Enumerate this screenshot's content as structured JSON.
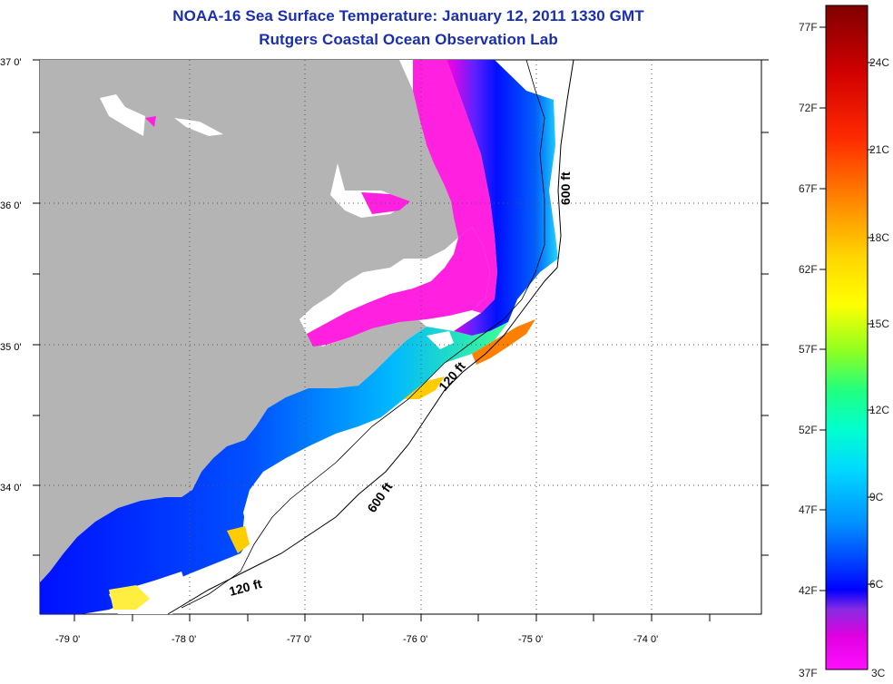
{
  "header": {
    "title": "NOAA-16 Sea Surface Temperature:  January 12, 2011 1330 GMT",
    "subtitle": "Rutgers Coastal Ocean Observation Lab"
  },
  "map": {
    "lat_labels": [
      "37 0'",
      "36 0'",
      "35 0'",
      "34 0'"
    ],
    "lon_labels": [
      "-79 0'",
      "-78 0'",
      "-77 0'",
      "-76 0'",
      "-75 0'",
      "-74 0'"
    ],
    "contour_labels": [
      "600 ft",
      "600 ft",
      "120 ft",
      "120 ft"
    ],
    "land_color": "#b4b4b4",
    "cloud_color": "#ffffff"
  },
  "colorbar": {
    "fahrenheit_labels": [
      "77F",
      "72F",
      "67F",
      "62F",
      "57F",
      "52F",
      "47F",
      "42F",
      "37F"
    ],
    "celsius_labels": [
      "24C",
      "21C",
      "18C",
      "15C",
      "12C",
      "9C",
      "6C",
      "3C"
    ],
    "colors_top_to_bottom": [
      "#8b0000",
      "#ff0000",
      "#ff8c00",
      "#ffff00",
      "#7fff00",
      "#00ff7f",
      "#00ffff",
      "#0080ff",
      "#0000ff",
      "#8a2be2",
      "#ff00ff"
    ]
  }
}
